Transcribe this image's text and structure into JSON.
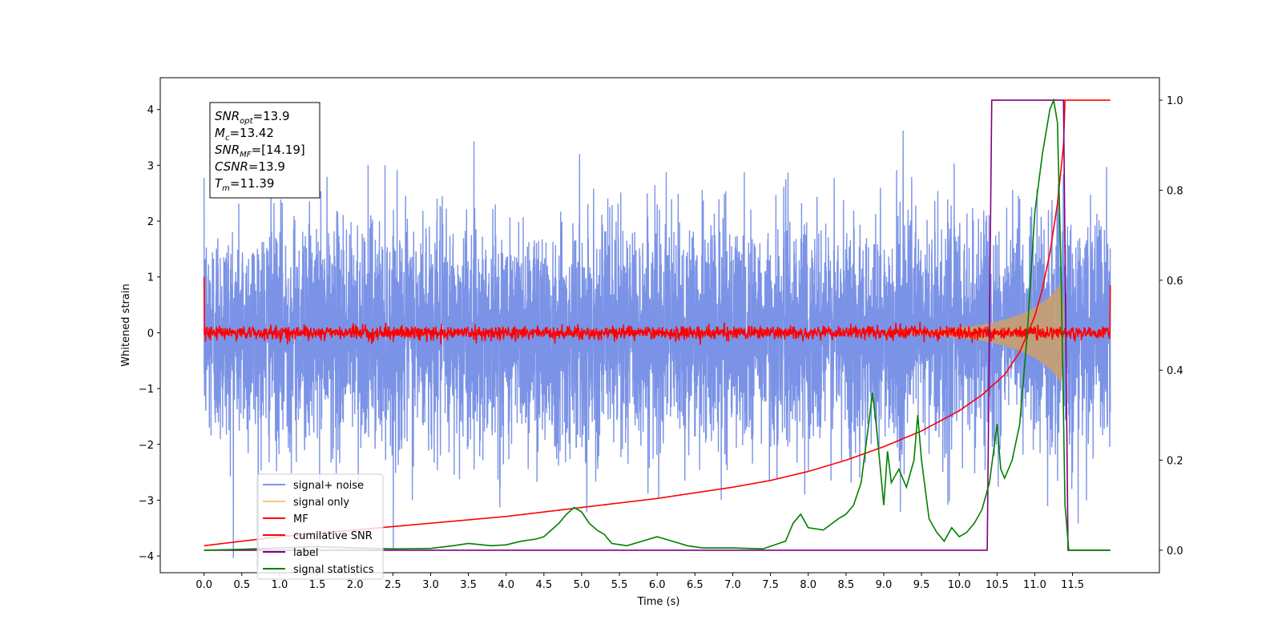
{
  "chart_data": {
    "type": "line",
    "xlabel": "Time (s)",
    "ylabel": "Whitened strain",
    "xlim": [
      -0.58,
      12.65
    ],
    "ylim": [
      -4.3,
      4.57
    ],
    "y2lim": [
      -0.05,
      1.05
    ],
    "x_ticks": [
      "0.0",
      "0.5",
      "1.0",
      "1.5",
      "2.0",
      "2.5",
      "3.0",
      "3.5",
      "4.0",
      "4.5",
      "5.0",
      "5.5",
      "6.0",
      "6.5",
      "7.0",
      "7.5",
      "8.0",
      "8.5",
      "9.0",
      "9.5",
      "10.0",
      "10.5",
      "11.0",
      "11.5"
    ],
    "y_ticks": [
      "4",
      "3",
      "2",
      "1",
      "0",
      "−1",
      "−2",
      "−3",
      "−4"
    ],
    "y2_ticks": [
      "1.0",
      "0.8",
      "0.6",
      "0.4",
      "0.2",
      "0.0"
    ],
    "info_box": [
      {
        "base": "SNR",
        "sub": "opt",
        "value": "=13.9"
      },
      {
        "base": "M",
        "sub": "c",
        "value": "=13.42"
      },
      {
        "base": "SNR",
        "sub": "MF",
        "value": "=[14.19]"
      },
      {
        "base": "CSNR",
        "sub": "",
        "value": "=13.9"
      },
      {
        "base": "T",
        "sub": "m",
        "value": "=11.39"
      }
    ],
    "legend": {
      "placement": "lower-left",
      "entries": [
        {
          "label": "signal+ noise",
          "color": "#7b93e6"
        },
        {
          "label": "signal only",
          "color": "#f5c97a"
        },
        {
          "label": "MF",
          "color": "#ff0000"
        },
        {
          "label": "cumilative SNR",
          "color": "#ff0000"
        },
        {
          "label": "label",
          "color": "#800080"
        },
        {
          "label": "signal statistics",
          "color": "#008000"
        }
      ]
    },
    "series": [
      {
        "name": "signal+ noise",
        "axis": "left",
        "color": "#7b93e6",
        "t_range": [
          0,
          12.0
        ],
        "noise_sigma": 1.0,
        "noise_peak": 4.2
      },
      {
        "name": "signal only",
        "axis": "left",
        "color": "#c8a070",
        "envelope": [
          [
            9.3,
            0.02
          ],
          [
            9.6,
            0.04
          ],
          [
            9.9,
            0.08
          ],
          [
            10.2,
            0.12
          ],
          [
            10.5,
            0.2
          ],
          [
            10.8,
            0.32
          ],
          [
            11.0,
            0.45
          ],
          [
            11.2,
            0.65
          ],
          [
            11.3,
            0.8
          ],
          [
            11.35,
            0.9
          ],
          [
            11.38,
            0.55
          ],
          [
            11.4,
            0.0
          ]
        ]
      },
      {
        "name": "MF",
        "axis": "left",
        "color": "#ff0000",
        "t_range": [
          0,
          12.0
        ],
        "start": 1.0,
        "end": 0.85,
        "noise_amp": 0.06
      },
      {
        "name": "cumilative SNR",
        "axis": "right",
        "color": "#ff0000",
        "points": [
          [
            0.0,
            0.01
          ],
          [
            0.5,
            0.02
          ],
          [
            1.0,
            0.03
          ],
          [
            2.0,
            0.045
          ],
          [
            3.0,
            0.06
          ],
          [
            4.0,
            0.075
          ],
          [
            5.0,
            0.095
          ],
          [
            6.0,
            0.115
          ],
          [
            7.0,
            0.14
          ],
          [
            7.5,
            0.155
          ],
          [
            8.0,
            0.175
          ],
          [
            8.5,
            0.2
          ],
          [
            9.0,
            0.23
          ],
          [
            9.5,
            0.265
          ],
          [
            10.0,
            0.31
          ],
          [
            10.3,
            0.345
          ],
          [
            10.6,
            0.39
          ],
          [
            10.8,
            0.44
          ],
          [
            11.0,
            0.52
          ],
          [
            11.1,
            0.58
          ],
          [
            11.2,
            0.66
          ],
          [
            11.3,
            0.77
          ],
          [
            11.38,
            0.9
          ],
          [
            11.39,
            1.0
          ],
          [
            12.0,
            1.0
          ]
        ]
      },
      {
        "name": "label",
        "axis": "right",
        "color": "#800080",
        "points": [
          [
            0.0,
            0.0
          ],
          [
            10.37,
            0.0
          ],
          [
            10.43,
            1.0
          ],
          [
            11.38,
            1.0
          ],
          [
            11.44,
            0.0
          ],
          [
            12.0,
            0.0
          ]
        ]
      },
      {
        "name": "signal statistics",
        "axis": "right",
        "color": "#008000",
        "points": [
          [
            0.0,
            0.0
          ],
          [
            0.5,
            0.002
          ],
          [
            1.0,
            0.005
          ],
          [
            1.5,
            0.008
          ],
          [
            2.0,
            0.005
          ],
          [
            2.5,
            0.003
          ],
          [
            3.0,
            0.004
          ],
          [
            3.3,
            0.01
          ],
          [
            3.5,
            0.015
          ],
          [
            3.8,
            0.01
          ],
          [
            4.0,
            0.012
          ],
          [
            4.2,
            0.02
          ],
          [
            4.4,
            0.025
          ],
          [
            4.5,
            0.03
          ],
          [
            4.6,
            0.045
          ],
          [
            4.7,
            0.06
          ],
          [
            4.8,
            0.08
          ],
          [
            4.9,
            0.095
          ],
          [
            5.0,
            0.085
          ],
          [
            5.1,
            0.06
          ],
          [
            5.2,
            0.045
          ],
          [
            5.3,
            0.035
          ],
          [
            5.4,
            0.015
          ],
          [
            5.6,
            0.01
          ],
          [
            5.8,
            0.02
          ],
          [
            6.0,
            0.03
          ],
          [
            6.2,
            0.02
          ],
          [
            6.4,
            0.01
          ],
          [
            6.6,
            0.005
          ],
          [
            7.0,
            0.005
          ],
          [
            7.4,
            0.003
          ],
          [
            7.7,
            0.02
          ],
          [
            7.8,
            0.06
          ],
          [
            7.9,
            0.08
          ],
          [
            8.0,
            0.05
          ],
          [
            8.2,
            0.045
          ],
          [
            8.4,
            0.07
          ],
          [
            8.5,
            0.08
          ],
          [
            8.6,
            0.1
          ],
          [
            8.7,
            0.15
          ],
          [
            8.8,
            0.28
          ],
          [
            8.85,
            0.35
          ],
          [
            8.9,
            0.28
          ],
          [
            9.0,
            0.1
          ],
          [
            9.05,
            0.22
          ],
          [
            9.1,
            0.15
          ],
          [
            9.2,
            0.18
          ],
          [
            9.3,
            0.14
          ],
          [
            9.4,
            0.2
          ],
          [
            9.45,
            0.3
          ],
          [
            9.5,
            0.2
          ],
          [
            9.6,
            0.07
          ],
          [
            9.7,
            0.04
          ],
          [
            9.8,
            0.02
          ],
          [
            9.9,
            0.05
          ],
          [
            10.0,
            0.03
          ],
          [
            10.1,
            0.04
          ],
          [
            10.2,
            0.06
          ],
          [
            10.3,
            0.09
          ],
          [
            10.4,
            0.15
          ],
          [
            10.5,
            0.28
          ],
          [
            10.55,
            0.18
          ],
          [
            10.6,
            0.16
          ],
          [
            10.7,
            0.2
          ],
          [
            10.8,
            0.28
          ],
          [
            10.9,
            0.48
          ],
          [
            11.0,
            0.75
          ],
          [
            11.1,
            0.88
          ],
          [
            11.2,
            0.98
          ],
          [
            11.25,
            1.0
          ],
          [
            11.3,
            0.95
          ],
          [
            11.35,
            0.6
          ],
          [
            11.4,
            0.1
          ],
          [
            11.45,
            0.0
          ],
          [
            12.0,
            0.0
          ]
        ]
      }
    ]
  }
}
